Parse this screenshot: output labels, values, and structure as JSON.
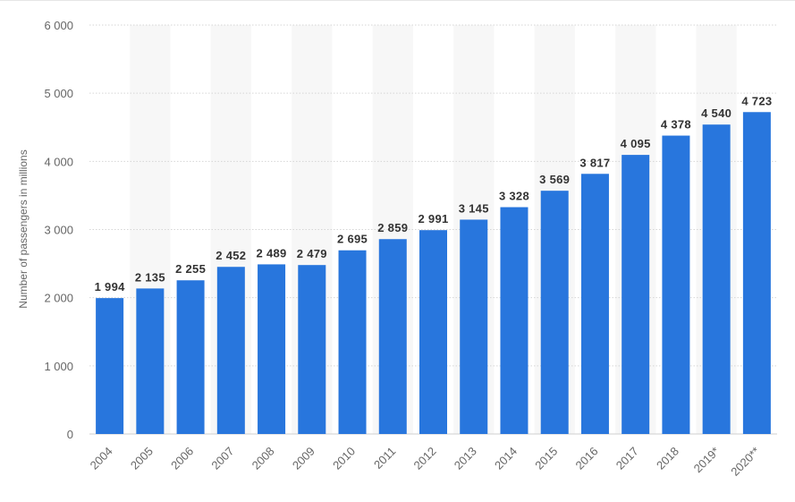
{
  "chart_data": {
    "type": "bar",
    "title": "",
    "xlabel": "",
    "ylabel": "Number of passengers in millions",
    "categories": [
      "2004",
      "2005",
      "2006",
      "2007",
      "2008",
      "2009",
      "2010",
      "2011",
      "2012",
      "2013",
      "2014",
      "2015",
      "2016",
      "2017",
      "2018",
      "2019*",
      "2020**"
    ],
    "values": [
      1994,
      2135,
      2255,
      2452,
      2489,
      2479,
      2695,
      2859,
      2991,
      3145,
      3328,
      3569,
      3817,
      4095,
      4378,
      4540,
      4723
    ],
    "data_labels": [
      "1 994",
      "2 135",
      "2 255",
      "2 452",
      "2 489",
      "2 479",
      "2 695",
      "2 859",
      "2 991",
      "3 145",
      "3 328",
      "3 569",
      "3 817",
      "4 095",
      "4 378",
      "4 540",
      "4 723"
    ],
    "ylim": [
      0,
      6000
    ],
    "yticks": [
      0,
      1000,
      2000,
      3000,
      4000,
      5000,
      6000
    ],
    "ytick_labels": [
      "0",
      "1 000",
      "2 000",
      "3 000",
      "4 000",
      "5 000",
      "6 000"
    ],
    "grid": true,
    "legend": "none",
    "colors": {
      "bar": "#2876dd",
      "band": "#f7f7f7",
      "grid": "#d6d6d6"
    }
  }
}
